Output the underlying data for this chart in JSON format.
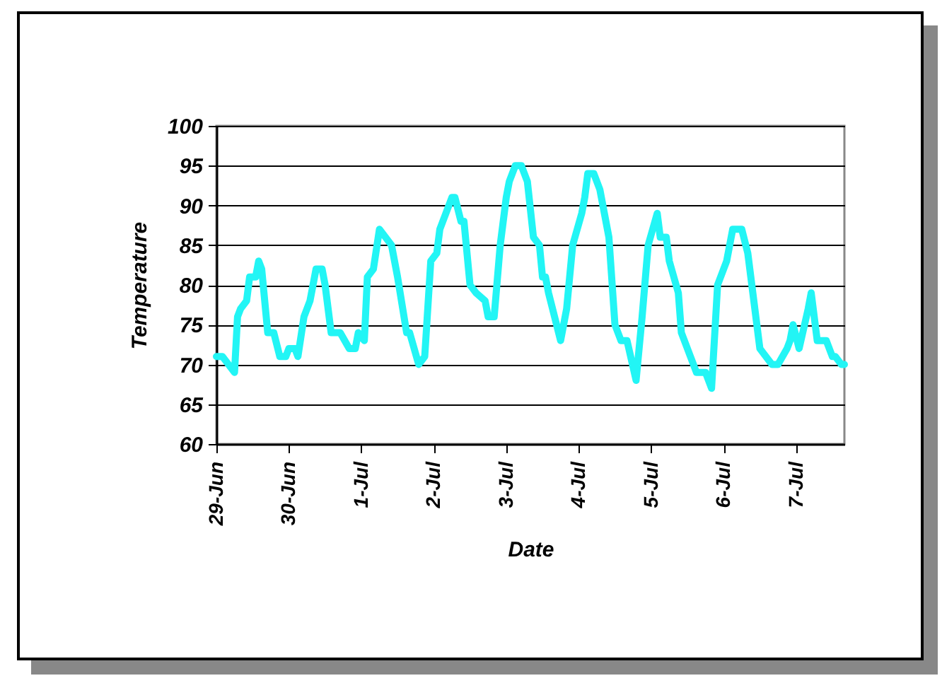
{
  "chart_data": {
    "type": "line",
    "xlabel": "Date",
    "ylabel": "Temperature",
    "x": [
      "--06-29T00:00",
      "--06-29T02:00",
      "--06-29T04:00",
      "--06-29T06:00",
      "--06-29T07:00",
      "--06-29T08:00",
      "--06-29T10:00",
      "--06-29T11:00",
      "--06-29T13:00",
      "--06-29T14:00",
      "--06-29T15:00",
      "--06-29T17:00",
      "--06-29T19:00",
      "--06-29T21:00",
      "--06-29T23:00",
      "--06-30T00:00",
      "--06-30T02:00",
      "--06-30T03:00",
      "--06-30T05:00",
      "--06-30T07:00",
      "--06-30T09:00",
      "--06-30T11:00",
      "--06-30T12:00",
      "--06-30T14:00",
      "--06-30T17:00",
      "--06-30T20:00",
      "--06-30T22:00",
      "--06-30T23:00",
      "--07-01T01:00",
      "--07-01T02:00",
      "--07-01T04:00",
      "--07-01T06:00",
      "--07-01T08:00",
      "--07-01T10:00",
      "--07-01T12:00",
      "--07-01T15:00",
      "--07-01T16:00",
      "--07-01T19:00",
      "--07-01T21:00",
      "--07-01T23:00",
      "--07-02T01:00",
      "--07-02T02:00",
      "--07-02T04:00",
      "--07-02T06:00",
      "--07-02T07:00",
      "--07-02T09:00",
      "--07-02T10:00",
      "--07-02T12:00",
      "--07-02T14:00",
      "--07-02T17:00",
      "--07-02T18:00",
      "--07-02T20:00",
      "--07-02T22:00",
      "--07-03T00:00",
      "--07-03T01:00",
      "--07-03T03:00",
      "--07-03T05:00",
      "--07-03T07:00",
      "--07-03T09:00",
      "--07-03T11:00",
      "--07-03T12:00",
      "--07-03T13:00",
      "--07-03T14:00",
      "--07-03T16:00",
      "--07-03T18:00",
      "--07-03T20:00",
      "--07-03T22:00",
      "--07-04T01:00",
      "--07-04T02:00",
      "--07-04T03:00",
      "--07-04T05:00",
      "--07-04T07:00",
      "--07-04T10:00",
      "--07-04T12:00",
      "--07-04T14:00",
      "--07-04T16:00",
      "--07-04T19:00",
      "--07-04T21:00",
      "--07-04T23:00",
      "--07-05T02:00",
      "--07-05T03:00",
      "--07-05T05:00",
      "--07-05T06:00",
      "--07-05T09:00",
      "--07-05T10:00",
      "--07-05T13:00",
      "--07-05T15:00",
      "--07-05T18:00",
      "--07-05T20:00",
      "--07-05T22:00",
      "--07-06T00:00",
      "--07-06T01:00",
      "--07-06T03:00",
      "--07-06T06:00",
      "--07-06T08:00",
      "--07-06T11:00",
      "--07-06T12:00",
      "--07-06T14:00",
      "--07-06T16:00",
      "--07-06T18:00",
      "--07-06T21:00",
      "--07-06T22:00",
      "--07-06T23:00",
      "--07-07T01:00",
      "--07-07T04:00",
      "--07-07T05:00",
      "--07-07T07:00",
      "--07-07T10:00",
      "--07-07T12:00",
      "--07-07T13:00",
      "--07-07T15:00",
      "--07-07T16:00"
    ],
    "series": [
      {
        "color": "#22f5f5",
        "values": [
          71,
          71,
          70,
          69,
          76,
          77,
          78,
          81,
          81,
          83,
          82,
          74,
          74,
          71,
          71,
          72,
          72,
          71,
          76,
          78,
          82,
          82,
          80,
          74,
          74,
          72,
          72,
          74,
          73,
          81,
          82,
          87,
          86,
          85,
          81,
          74,
          74,
          70,
          71,
          83,
          84,
          87,
          89,
          91,
          91,
          88,
          88,
          80,
          79,
          78,
          76,
          76,
          85,
          91,
          93,
          95,
          95,
          93,
          86,
          85,
          81,
          81,
          79,
          76,
          73,
          77,
          85,
          89,
          91,
          94,
          94,
          92,
          86,
          75,
          73,
          73,
          68,
          76,
          85,
          89,
          86,
          86,
          83,
          79,
          74,
          71,
          69,
          69,
          67,
          80,
          82,
          83,
          87,
          87,
          84,
          75,
          72,
          71,
          70,
          70,
          72,
          73,
          75,
          72,
          77,
          79,
          73,
          73,
          71,
          71,
          70,
          70
        ]
      }
    ],
    "xlim": [
      "--06-29",
      "--07-07T16:00"
    ],
    "xticks": [
      {
        "value": "--06-29",
        "label": "29-Jun"
      },
      {
        "value": "--06-30",
        "label": "30-Jun"
      },
      {
        "value": "--07-01",
        "label": "1-Jul"
      },
      {
        "value": "--07-02",
        "label": "2-Jul"
      },
      {
        "value": "--07-03",
        "label": "3-Jul"
      },
      {
        "value": "--07-04",
        "label": "4-Jul"
      },
      {
        "value": "--07-05",
        "label": "5-Jul"
      },
      {
        "value": "--07-06",
        "label": "6-Jul"
      },
      {
        "value": "--07-07",
        "label": "7-Jul"
      }
    ],
    "ylim": [
      60,
      100
    ],
    "yticks": [
      60,
      65,
      70,
      75,
      80,
      85,
      90,
      95,
      100
    ],
    "grid": "y",
    "legend": false,
    "marker": "none",
    "line_style": "solid"
  }
}
